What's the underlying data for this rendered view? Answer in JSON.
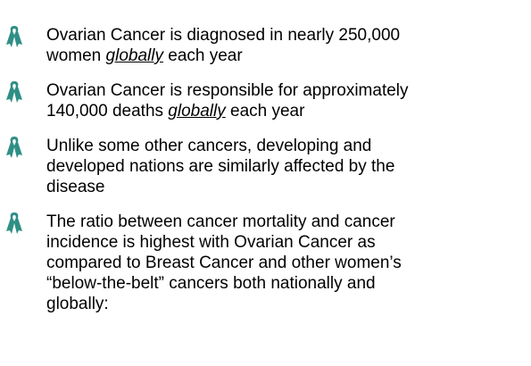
{
  "bullets": [
    {
      "lines": [
        [
          "Ovarian Cancer is diagnosed in nearly 250,000"
        ],
        [
          "women ",
          {
            "text": "globally",
            "emphasis": true
          },
          " each year"
        ]
      ]
    },
    {
      "lines": [
        [
          "Ovarian Cancer is responsible for approximately"
        ],
        [
          "140,000 deaths ",
          {
            "text": "globally",
            "emphasis": true
          },
          " each year"
        ]
      ]
    },
    {
      "lines": [
        [
          "Unlike some other cancers, developing and"
        ],
        [
          "developed nations are similarly affected by the"
        ],
        [
          "disease"
        ]
      ]
    },
    {
      "lines": [
        [
          "The ratio between cancer mortality and cancer"
        ],
        [
          "incidence is highest with Ovarian Cancer as"
        ],
        [
          "compared to Breast Cancer and other women’s"
        ],
        [
          "“below-the-belt” cancers both nationally and"
        ],
        [
          "globally:"
        ]
      ]
    }
  ]
}
